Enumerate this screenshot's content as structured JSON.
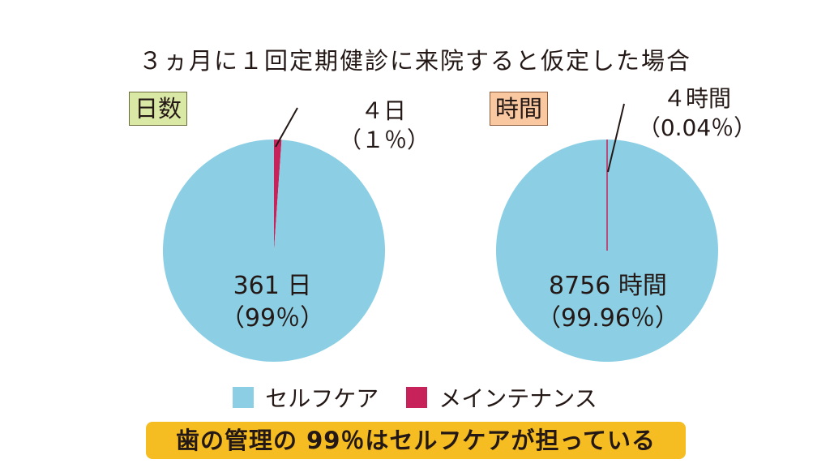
{
  "title": "３ヵ月に１回定期健診に来院すると仮定した場合",
  "labels": {
    "days_tag": "日数",
    "hours_tag": "時間"
  },
  "colors": {
    "self_care": "#8ccfe4",
    "maintenance": "#c8225a",
    "days_tag_bg": "#d9e8a4",
    "hours_tag_bg": "#f9c8a0",
    "banner_bg": "#f6bd22"
  },
  "chart_data": [
    {
      "type": "pie",
      "title": "日数",
      "slices": [
        {
          "name": "セルフケア",
          "value": 361,
          "percent": 99,
          "label": "361 日",
          "percent_label": "（99％）"
        },
        {
          "name": "メインテナンス",
          "value": 4,
          "percent": 1,
          "label": "４日",
          "percent_label": "（１％）"
        }
      ]
    },
    {
      "type": "pie",
      "title": "時間",
      "slices": [
        {
          "name": "セルフケア",
          "value": 8756,
          "percent": 99.96,
          "label": "8756 時間",
          "percent_label": "（99.96％）"
        },
        {
          "name": "メインテナンス",
          "value": 4,
          "percent": 0.04,
          "label": "４時間",
          "percent_label": "（0.04％）"
        }
      ]
    }
  ],
  "legend": [
    {
      "name": "セルフケア",
      "color": "#8ccfe4"
    },
    {
      "name": "メインテナンス",
      "color": "#c8225a"
    }
  ],
  "banner": "歯の管理の 99％はセルフケアが担っている"
}
